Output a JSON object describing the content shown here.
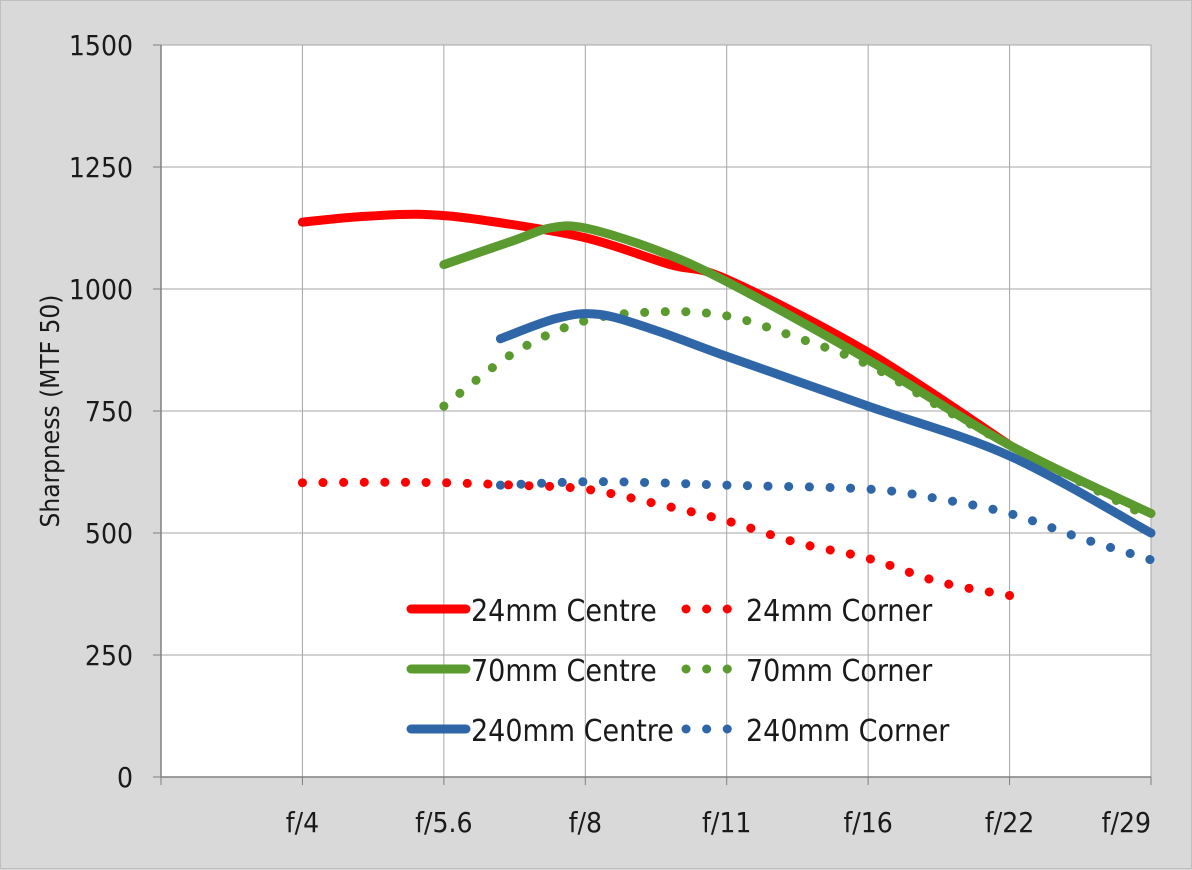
{
  "chart_data": {
    "type": "line",
    "title": "",
    "xlabel": "",
    "ylabel": "Sharpness  (MTF 50)",
    "ylim": [
      0,
      1500
    ],
    "yticks": [
      "0",
      "250",
      "500",
      "750",
      "1000",
      "1250",
      "1500"
    ],
    "categories": [
      "",
      "f/4",
      "f/5.6",
      "f/8",
      "f/11",
      "f/16",
      "f/22",
      "f/29"
    ],
    "grid": true,
    "legend": "bottom-center",
    "series": [
      {
        "name": "24mm Centre",
        "style": "solid",
        "color": "#ff0000",
        "points": [
          [
            1,
            1137
          ],
          [
            1.4,
            1148
          ],
          [
            1.85,
            1153
          ],
          [
            2.3,
            1140
          ],
          [
            3,
            1105
          ],
          [
            3.6,
            1050
          ],
          [
            4,
            1020
          ],
          [
            5,
            870
          ],
          [
            6,
            680
          ]
        ]
      },
      {
        "name": "24mm Corner",
        "style": "dotted",
        "color": "#ff0000",
        "points": [
          [
            1,
            603
          ],
          [
            1.5,
            604
          ],
          [
            2,
            603
          ],
          [
            2.5,
            598
          ],
          [
            3,
            590
          ],
          [
            3.5,
            560
          ],
          [
            4,
            525
          ],
          [
            4.5,
            480
          ],
          [
            5,
            448
          ],
          [
            5.5,
            400
          ],
          [
            6,
            372
          ]
        ]
      },
      {
        "name": "70mm Centre",
        "style": "solid",
        "color": "#5a9a2e",
        "points": [
          [
            2,
            1050
          ],
          [
            2.5,
            1100
          ],
          [
            2.75,
            1125
          ],
          [
            3,
            1125
          ],
          [
            3.5,
            1080
          ],
          [
            4,
            1015
          ],
          [
            5,
            855
          ],
          [
            6,
            680
          ],
          [
            7,
            540
          ]
        ]
      },
      {
        "name": "70mm Corner",
        "style": "dotted",
        "color": "#5a9a2e",
        "points": [
          [
            2,
            760
          ],
          [
            2.5,
            870
          ],
          [
            3,
            935
          ],
          [
            3.5,
            953
          ],
          [
            4,
            945
          ],
          [
            4.5,
            900
          ],
          [
            5,
            845
          ],
          [
            5.5,
            760
          ],
          [
            6,
            680
          ],
          [
            7,
            530
          ]
        ]
      },
      {
        "name": "240mm Centre",
        "style": "solid",
        "color": "#2e66a8",
        "points": [
          [
            2.4,
            898
          ],
          [
            2.8,
            940
          ],
          [
            3.1,
            948
          ],
          [
            3.5,
            915
          ],
          [
            4,
            862
          ],
          [
            5,
            760
          ],
          [
            6,
            658
          ],
          [
            7,
            500
          ]
        ]
      },
      {
        "name": "240mm Corner",
        "style": "dotted",
        "color": "#2e66a8",
        "points": [
          [
            2.4,
            598
          ],
          [
            3,
            605
          ],
          [
            3.5,
            603
          ],
          [
            4,
            598
          ],
          [
            5,
            590
          ],
          [
            5.5,
            570
          ],
          [
            6,
            540
          ],
          [
            6.5,
            490
          ],
          [
            7,
            445
          ]
        ]
      }
    ]
  }
}
